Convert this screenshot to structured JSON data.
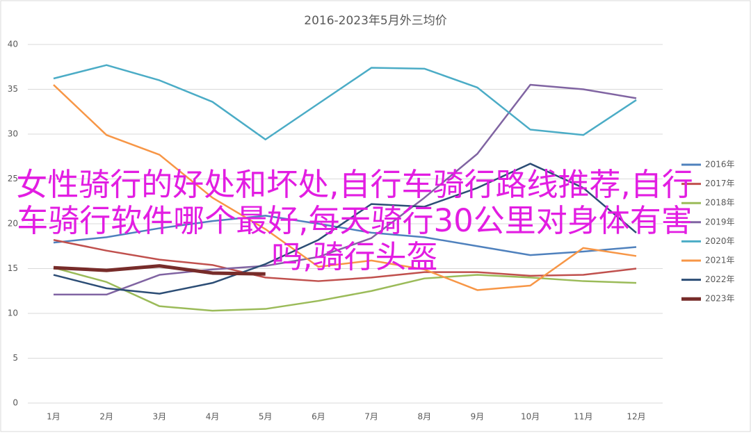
{
  "chart_data": {
    "type": "line",
    "title": "2016-2023年5月外三均价",
    "categories": [
      "1月",
      "2月",
      "3月",
      "4月",
      "5月",
      "6月",
      "7月",
      "8月",
      "9月",
      "10月",
      "11月",
      "12月"
    ],
    "ylim": [
      0,
      40
    ],
    "yticks": [
      0,
      5,
      10,
      15,
      20,
      25,
      30,
      35,
      40
    ],
    "grid": true,
    "legend": "right",
    "series": [
      {
        "name": "2016年",
        "color": "#4f81bd",
        "values": [
          17.9,
          18.5,
          19.5,
          20.3,
          20.9,
          20.0,
          19.0,
          18.5,
          17.5,
          16.5,
          16.9,
          17.4
        ]
      },
      {
        "name": "2017年",
        "color": "#c0504d",
        "values": [
          18.2,
          17.0,
          16.0,
          15.4,
          14.0,
          13.6,
          14.0,
          14.6,
          14.6,
          14.2,
          14.3,
          15.0
        ]
      },
      {
        "name": "2018年",
        "color": "#9bbb59",
        "values": [
          15.1,
          13.5,
          10.8,
          10.3,
          10.5,
          11.4,
          12.5,
          13.9,
          14.3,
          14.0,
          13.6,
          13.4
        ]
      },
      {
        "name": "2019年",
        "color": "#8064a2",
        "values": [
          12.1,
          12.1,
          14.3,
          14.9,
          15.3,
          16.3,
          18.4,
          22.9,
          27.8,
          35.5,
          35.0,
          34.0
        ]
      },
      {
        "name": "2020年",
        "color": "#4bacc6",
        "values": [
          36.2,
          37.7,
          36.0,
          33.6,
          29.4,
          33.4,
          37.4,
          37.3,
          35.2,
          30.5,
          29.9,
          33.8
        ]
      },
      {
        "name": "2021年",
        "color": "#f79646",
        "values": [
          35.5,
          29.9,
          27.7,
          22.9,
          19.4,
          15.2,
          15.9,
          14.9,
          12.6,
          13.1,
          17.3,
          16.4
        ]
      },
      {
        "name": "2022年",
        "color": "#2c4d75",
        "values": [
          14.3,
          12.8,
          12.2,
          13.4,
          15.5,
          18.2,
          22.2,
          21.9,
          24.0,
          26.7,
          24.0,
          19.0
        ]
      },
      {
        "name": "2023年",
        "color": "#772c2a",
        "values": [
          15.1,
          14.8,
          15.3,
          14.5,
          14.4,
          null,
          null,
          null,
          null,
          null,
          null,
          null
        ]
      }
    ]
  },
  "overlay_text": "女性骑行的好处和坏处,自行车骑行路线推荐,自行车骑行软件哪个最好,每天骑行30公里对身体有害吗,骑行头盔"
}
